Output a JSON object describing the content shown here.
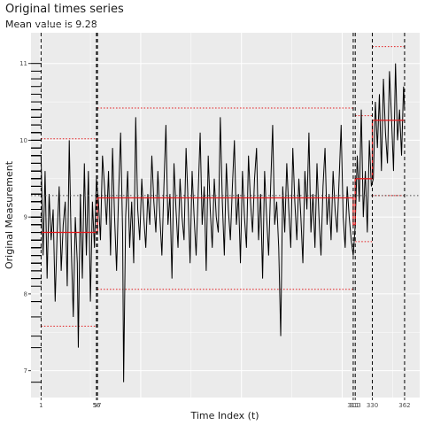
{
  "chart_data": {
    "type": "line",
    "title": "Original times series",
    "subtitle": "Mean value is 9.28",
    "xlabel": "Time Index (t)",
    "ylabel": "Original Measurement",
    "xlim": [
      -9,
      377
    ],
    "ylim": [
      6.65,
      11.4
    ],
    "y_ticks": [
      7,
      8,
      9,
      10,
      11
    ],
    "x_tick_labels": [
      {
        "x": 1,
        "label": "1"
      },
      {
        "x": 56,
        "label": "56"
      },
      {
        "x": 57,
        "label": "57"
      },
      {
        "x": 311,
        "label": "311"
      },
      {
        "x": 313,
        "label": "313"
      },
      {
        "x": 330,
        "label": "330"
      },
      {
        "x": 362,
        "label": "362"
      }
    ],
    "overall_mean": 9.28,
    "changepoints": [
      1,
      56,
      57,
      311,
      313,
      330,
      362
    ],
    "segments": [
      {
        "start": 1,
        "end": 57,
        "mean": 8.8,
        "lower": 7.58,
        "upper": 10.02
      },
      {
        "start": 57,
        "end": 311,
        "mean": 9.25,
        "lower": 8.06,
        "upper": 10.42
      },
      {
        "start": 311,
        "end": 313,
        "mean": 8.9,
        "lower": null,
        "upper": null
      },
      {
        "start": 313,
        "end": 330,
        "mean": 9.5,
        "lower": 8.68,
        "upper": 10.32
      },
      {
        "start": 330,
        "end": 362,
        "mean": 10.26,
        "lower": 9.28,
        "upper": 11.22
      }
    ],
    "series": [
      {
        "values": [
          [
            1,
            9.8
          ],
          [
            3,
            8.5
          ],
          [
            5,
            9.6
          ],
          [
            7,
            8.2
          ],
          [
            9,
            9.3
          ],
          [
            11,
            8.7
          ],
          [
            13,
            9.1
          ],
          [
            15,
            7.9
          ],
          [
            17,
            8.8
          ],
          [
            19,
            9.4
          ],
          [
            21,
            8.3
          ],
          [
            23,
            8.9
          ],
          [
            25,
            9.2
          ],
          [
            27,
            8.1
          ],
          [
            29,
            10.0
          ],
          [
            31,
            8.6
          ],
          [
            33,
            7.7
          ],
          [
            35,
            9.0
          ],
          [
            37,
            8.4
          ],
          [
            38,
            7.3
          ],
          [
            40,
            9.3
          ],
          [
            42,
            8.2
          ],
          [
            44,
            9.7
          ],
          [
            46,
            8.5
          ],
          [
            48,
            9.6
          ],
          [
            50,
            7.9
          ],
          [
            52,
            9.2
          ],
          [
            54,
            8.6
          ],
          [
            56,
            9.5
          ],
          [
            58,
            9.2
          ],
          [
            60,
            8.7
          ],
          [
            62,
            9.8
          ],
          [
            64,
            9.4
          ],
          [
            66,
            8.9
          ],
          [
            68,
            9.6
          ],
          [
            70,
            8.5
          ],
          [
            72,
            9.9
          ],
          [
            74,
            9.0
          ],
          [
            76,
            8.3
          ],
          [
            78,
            9.3
          ],
          [
            80,
            10.1
          ],
          [
            82,
            8.8
          ],
          [
            83,
            6.85
          ],
          [
            85,
            9.0
          ],
          [
            87,
            9.6
          ],
          [
            89,
            8.6
          ],
          [
            91,
            9.2
          ],
          [
            93,
            8.4
          ],
          [
            95,
            10.3
          ],
          [
            97,
            9.1
          ],
          [
            99,
            8.7
          ],
          [
            101,
            9.5
          ],
          [
            103,
            9.0
          ],
          [
            105,
            8.6
          ],
          [
            107,
            9.3
          ],
          [
            109,
            8.9
          ],
          [
            111,
            9.8
          ],
          [
            113,
            9.2
          ],
          [
            115,
            8.8
          ],
          [
            117,
            9.6
          ],
          [
            119,
            9.0
          ],
          [
            121,
            8.5
          ],
          [
            123,
            9.4
          ],
          [
            125,
            10.2
          ],
          [
            127,
            8.9
          ],
          [
            129,
            9.3
          ],
          [
            131,
            8.2
          ],
          [
            133,
            9.7
          ],
          [
            135,
            9.1
          ],
          [
            137,
            8.6
          ],
          [
            139,
            9.5
          ],
          [
            141,
            9.0
          ],
          [
            143,
            8.7
          ],
          [
            145,
            9.9
          ],
          [
            147,
            9.2
          ],
          [
            149,
            8.4
          ],
          [
            151,
            9.6
          ],
          [
            153,
            9.0
          ],
          [
            155,
            8.5
          ],
          [
            157,
            9.3
          ],
          [
            159,
            10.1
          ],
          [
            161,
            8.9
          ],
          [
            163,
            9.4
          ],
          [
            165,
            8.3
          ],
          [
            167,
            9.8
          ],
          [
            169,
            9.1
          ],
          [
            171,
            8.6
          ],
          [
            173,
            9.5
          ],
          [
            175,
            9.0
          ],
          [
            177,
            8.8
          ],
          [
            179,
            10.3
          ],
          [
            181,
            9.2
          ],
          [
            183,
            8.5
          ],
          [
            185,
            9.7
          ],
          [
            187,
            9.1
          ],
          [
            189,
            8.7
          ],
          [
            191,
            9.4
          ],
          [
            193,
            10.0
          ],
          [
            195,
            8.9
          ],
          [
            197,
            9.3
          ],
          [
            199,
            8.4
          ],
          [
            201,
            9.6
          ],
          [
            203,
            9.0
          ],
          [
            205,
            8.6
          ],
          [
            207,
            9.8
          ],
          [
            209,
            9.2
          ],
          [
            211,
            8.8
          ],
          [
            213,
            9.5
          ],
          [
            215,
            9.9
          ],
          [
            217,
            8.7
          ],
          [
            219,
            9.3
          ],
          [
            221,
            8.2
          ],
          [
            223,
            9.6
          ],
          [
            225,
            9.0
          ],
          [
            227,
            8.5
          ],
          [
            229,
            9.4
          ],
          [
            231,
            10.2
          ],
          [
            233,
            8.9
          ],
          [
            235,
            9.2
          ],
          [
            237,
            8.6
          ],
          [
            239,
            7.45
          ],
          [
            241,
            9.4
          ],
          [
            243,
            8.8
          ],
          [
            245,
            9.7
          ],
          [
            247,
            9.1
          ],
          [
            249,
            8.6
          ],
          [
            251,
            9.9
          ],
          [
            253,
            9.2
          ],
          [
            255,
            8.7
          ],
          [
            257,
            9.5
          ],
          [
            259,
            9.0
          ],
          [
            261,
            8.4
          ],
          [
            263,
            9.6
          ],
          [
            265,
            9.1
          ],
          [
            267,
            10.1
          ],
          [
            269,
            8.8
          ],
          [
            271,
            9.3
          ],
          [
            273,
            8.6
          ],
          [
            275,
            9.7
          ],
          [
            277,
            9.0
          ],
          [
            279,
            8.5
          ],
          [
            281,
            9.4
          ],
          [
            283,
            9.9
          ],
          [
            285,
            8.9
          ],
          [
            287,
            9.3
          ],
          [
            289,
            8.7
          ],
          [
            291,
            9.6
          ],
          [
            293,
            9.1
          ],
          [
            295,
            8.8
          ],
          [
            297,
            9.5
          ],
          [
            299,
            10.2
          ],
          [
            301,
            9.0
          ],
          [
            303,
            8.6
          ],
          [
            305,
            9.4
          ],
          [
            307,
            9.0
          ],
          [
            309,
            8.7
          ],
          [
            311,
            8.5
          ],
          [
            313,
            8.9
          ],
          [
            315,
            9.8
          ],
          [
            317,
            9.2
          ],
          [
            319,
            10.4
          ],
          [
            321,
            9.0
          ],
          [
            323,
            9.6
          ],
          [
            325,
            8.8
          ],
          [
            327,
            10.0
          ],
          [
            329,
            9.4
          ],
          [
            331,
            9.5
          ],
          [
            333,
            10.5
          ],
          [
            335,
            9.9
          ],
          [
            337,
            10.6
          ],
          [
            339,
            9.6
          ],
          [
            341,
            10.8
          ],
          [
            343,
            10.1
          ],
          [
            345,
            9.7
          ],
          [
            347,
            10.9
          ],
          [
            349,
            10.3
          ],
          [
            351,
            9.6
          ],
          [
            353,
            11.0
          ],
          [
            355,
            10.0
          ],
          [
            357,
            10.4
          ],
          [
            359,
            9.8
          ],
          [
            361,
            10.7
          ],
          [
            362,
            10.4
          ]
        ]
      }
    ],
    "grid": true,
    "rug": true,
    "colors": {
      "panel": "#ebebeb",
      "grid": "#ffffff",
      "series": "#000000",
      "segment_mean": "#e31a1c",
      "changepoint": "#000000",
      "overall_mean": "#4d4d4d"
    }
  }
}
